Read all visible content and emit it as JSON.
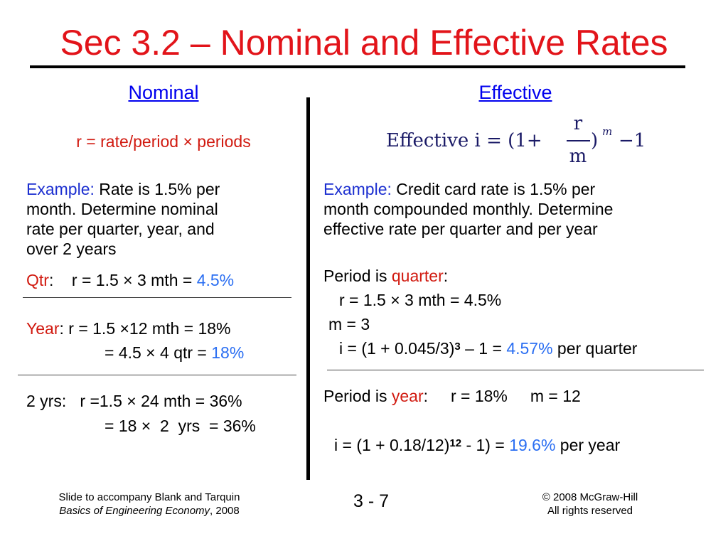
{
  "title": "Sec 3.2 – Nominal and Effective Rates",
  "nominal": {
    "heading": "Nominal",
    "formula": "r = rate/period × periods",
    "example_label": "Example:",
    "example_lines": [
      "Rate is 1.5% per",
      "month. Determine nominal",
      "rate per quarter, year, and",
      "over 2 years"
    ],
    "qtr_label": "Qtr",
    "qtr_text": ":    r = 1.5 × 3 mth = ",
    "qtr_result": "4.5%",
    "year_label": "Year",
    "year_text": ": r = 1.5 ×12 mth = 18%",
    "year_line2": "= 4.5 × 4 qtr = ",
    "year_result": "18%",
    "twoyrs_line1": "2 yrs:   r =1.5 × 24 mth = 36%",
    "twoyrs_line2": "= 18 ×  2  yrs  = 36%"
  },
  "effective": {
    "heading": "Effective",
    "formula_left": "Effective i = (1+",
    "formula_num": "r",
    "formula_den": "m",
    "formula_paren": ")",
    "formula_exp": "m",
    "formula_right": "−1",
    "example_label": "Example:",
    "example_lines": [
      "Credit card rate is 1.5% per",
      "month compounded monthly. Determine",
      "effective rate per quarter and per year"
    ],
    "q_period_pre": "Period is ",
    "q_period_word": "quarter",
    "q_period_post": ":",
    "q_r": "r = 1.5 × 3 mth = 4.5%",
    "q_m": "m = 3",
    "q_i_pre": "i = (1 + 0.045/3)",
    "q_i_exp": "3",
    "q_i_mid": " – 1 = ",
    "q_i_result": "4.57%",
    "q_i_post": " per quarter",
    "y_period_pre": "Period is ",
    "y_period_word": "year",
    "y_period_post": ":     r = 18%     m = 12",
    "y_i_pre": "i = (1 + 0.18/12)",
    "y_i_exp": "12",
    "y_i_mid": " - 1) = ",
    "y_i_result": "19.6%",
    "y_i_post": " per year"
  },
  "footer": {
    "left_line1": "Slide to accompany Blank and Tarquin",
    "left_book": "Basics of Engineering Economy",
    "left_year": ", 2008",
    "page": "3 - 7",
    "right_line1": "© 2008 McGraw-Hill",
    "right_line2": "All rights reserved"
  },
  "colors": {
    "title": "#e2141a",
    "highlight_red": "#d11a10",
    "highlight_blue": "#2a6ef2",
    "link": "#0000ee"
  }
}
